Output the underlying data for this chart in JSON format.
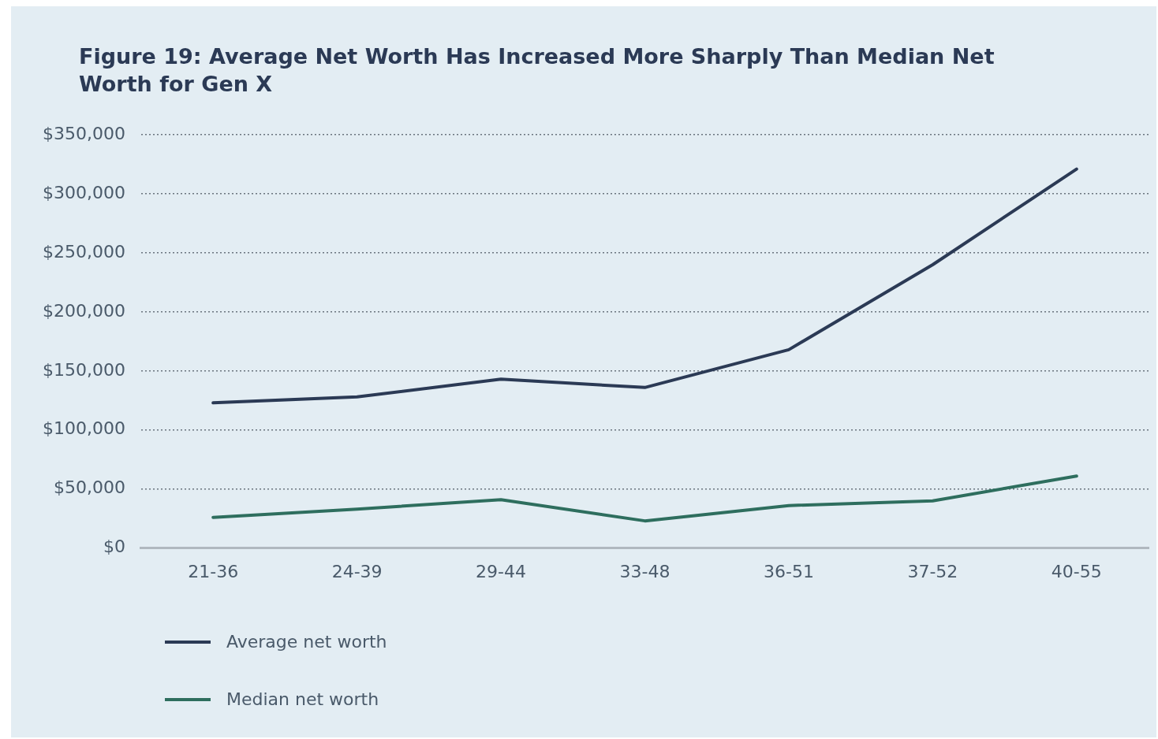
{
  "chart_data": {
    "type": "line",
    "title": "Figure 19: Average Net Worth Has Increased More Sharply Than Median Net Worth for Gen X",
    "categories": [
      "21-36",
      "24-39",
      "29-44",
      "33-48",
      "36-51",
      "37-52",
      "40-55"
    ],
    "series": [
      {
        "name": "Average net worth",
        "color": "#2b3a55",
        "values": [
          123000,
          128000,
          143000,
          136000,
          168000,
          240000,
          321000
        ]
      },
      {
        "name": "Median net worth",
        "color": "#2e6e5e",
        "values": [
          26000,
          33000,
          41000,
          23000,
          36000,
          40000,
          61000
        ]
      }
    ],
    "ylim": [
      0,
      350000
    ],
    "yticks": [
      {
        "value": 0,
        "label": "$0"
      },
      {
        "value": 50000,
        "label": "$50,000"
      },
      {
        "value": 100000,
        "label": "$100,000"
      },
      {
        "value": 150000,
        "label": "$150,000"
      },
      {
        "value": 200000,
        "label": "$200,000"
      },
      {
        "value": 250000,
        "label": "$250,000"
      },
      {
        "value": 300000,
        "label": "$300,000"
      },
      {
        "value": 350000,
        "label": "$350,000"
      }
    ],
    "grid": "y",
    "legend": "bottom left",
    "marker": "none",
    "line_style": "solid"
  }
}
